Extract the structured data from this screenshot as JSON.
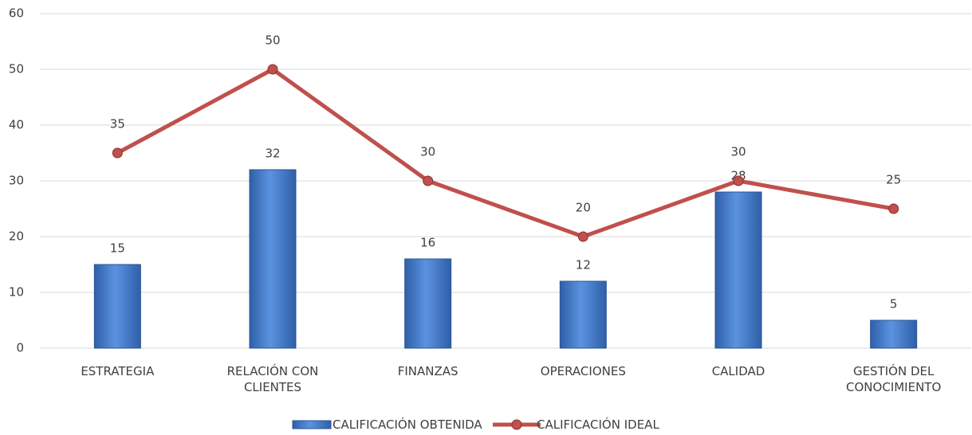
{
  "chart_data": {
    "type": "bar",
    "categories": [
      "ESTRATEGIA",
      "RELACIÓN CON CLIENTES",
      "FINANZAS",
      "OPERACIONES",
      "CALIDAD",
      "GESTIÓN DEL CONOCIMIENTO"
    ],
    "series": [
      {
        "name": "CALIFICACIÓN OBTENIDA",
        "type": "bar",
        "color": "#4a7fcf",
        "values": [
          15,
          32,
          16,
          12,
          28,
          5
        ]
      },
      {
        "name": "CALIFICACIÓN IDEAL",
        "type": "line",
        "color": "#c0504d",
        "values": [
          35,
          50,
          30,
          20,
          30,
          25
        ]
      }
    ],
    "ylim": [
      0,
      60
    ],
    "yticks": [
      0,
      10,
      20,
      30,
      40,
      50,
      60
    ],
    "grid": true,
    "legend": "bottom"
  }
}
